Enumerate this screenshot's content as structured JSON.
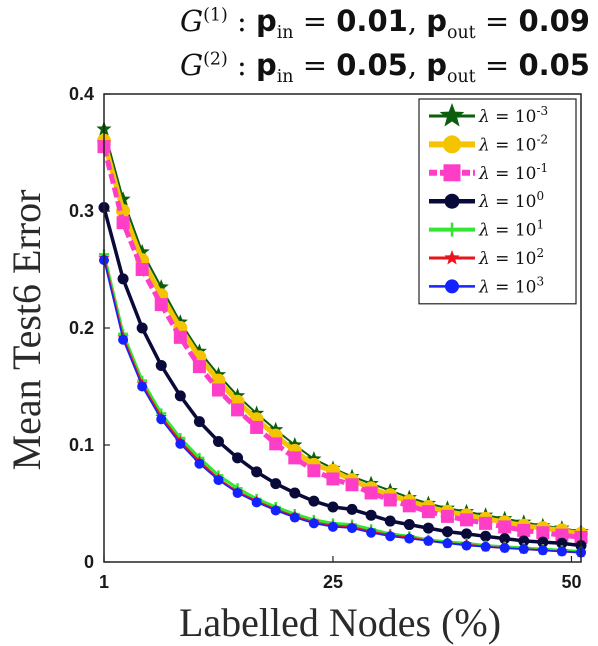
{
  "title": {
    "line1": {
      "graph": "G",
      "sup": "(1)",
      "pin_label": "p",
      "pin_sub": "in",
      "pin_value": "0.01",
      "pout_label": "p",
      "pout_sub": "out",
      "pout_value": "0.09"
    },
    "line2": {
      "graph": "G",
      "sup": "(2)",
      "pin_label": "p",
      "pin_sub": "in",
      "pin_value": "0.05",
      "pout_label": "p",
      "pout_sub": "out",
      "pout_value": "0.05"
    }
  },
  "chart_data": {
    "type": "line",
    "xlabel": "Labelled Nodes (%)",
    "ylabel": "Mean Test6 Error",
    "xlim": [
      1,
      51
    ],
    "ylim": [
      0,
      0.4
    ],
    "xticks": [
      1,
      25,
      50
    ],
    "yticks": [
      0,
      0.1,
      0.2,
      0.3,
      0.4
    ],
    "ytick_labels": [
      "0",
      "0.1",
      "0.2",
      "0.3",
      "0.4"
    ],
    "grid": false,
    "legend_position": "top-right",
    "series": [
      {
        "name": "λ = 10^-3",
        "base": "10",
        "exp": "-3",
        "color": "#0b5e0b",
        "marker": "star",
        "x": [
          1,
          3,
          5,
          7,
          9,
          11,
          13,
          15,
          17,
          19,
          21,
          23,
          25,
          27,
          29,
          31,
          33,
          35,
          37,
          39,
          41,
          43,
          45,
          47,
          49,
          51
        ],
        "y": [
          0.37,
          0.31,
          0.265,
          0.235,
          0.205,
          0.18,
          0.16,
          0.142,
          0.127,
          0.113,
          0.1,
          0.088,
          0.08,
          0.073,
          0.067,
          0.061,
          0.055,
          0.05,
          0.046,
          0.043,
          0.04,
          0.037,
          0.034,
          0.031,
          0.029,
          0.026
        ]
      },
      {
        "name": "λ = 10^-2",
        "base": "10",
        "exp": "-2",
        "color": "#f5c400",
        "marker": "circle",
        "x": [
          1,
          3,
          5,
          7,
          9,
          11,
          13,
          15,
          17,
          19,
          21,
          23,
          25,
          27,
          29,
          31,
          33,
          35,
          37,
          39,
          41,
          43,
          45,
          47,
          49,
          51
        ],
        "y": [
          0.36,
          0.3,
          0.258,
          0.228,
          0.2,
          0.175,
          0.155,
          0.137,
          0.122,
          0.108,
          0.095,
          0.083,
          0.078,
          0.07,
          0.063,
          0.057,
          0.052,
          0.047,
          0.043,
          0.04,
          0.037,
          0.034,
          0.031,
          0.029,
          0.027,
          0.024
        ]
      },
      {
        "name": "λ = 10^-1",
        "base": "10",
        "exp": "-1",
        "color": "#ff3ec8",
        "marker": "square",
        "x": [
          1,
          3,
          5,
          7,
          9,
          11,
          13,
          15,
          17,
          19,
          21,
          23,
          25,
          27,
          29,
          31,
          33,
          35,
          37,
          39,
          41,
          43,
          45,
          47,
          49,
          51
        ],
        "y": [
          0.355,
          0.29,
          0.25,
          0.22,
          0.192,
          0.167,
          0.147,
          0.13,
          0.115,
          0.101,
          0.089,
          0.078,
          0.071,
          0.066,
          0.059,
          0.053,
          0.048,
          0.043,
          0.039,
          0.036,
          0.033,
          0.03,
          0.027,
          0.025,
          0.023,
          0.021
        ]
      },
      {
        "name": "λ = 10^0",
        "base": "10",
        "exp": "0",
        "color": "#0a0a3a",
        "marker": "circle",
        "x": [
          1,
          3,
          5,
          7,
          9,
          11,
          13,
          15,
          17,
          19,
          21,
          23,
          25,
          27,
          29,
          31,
          33,
          35,
          37,
          39,
          41,
          43,
          45,
          47,
          49,
          51
        ],
        "y": [
          0.303,
          0.242,
          0.2,
          0.168,
          0.142,
          0.12,
          0.103,
          0.089,
          0.077,
          0.067,
          0.059,
          0.052,
          0.047,
          0.045,
          0.04,
          0.035,
          0.032,
          0.029,
          0.026,
          0.024,
          0.022,
          0.02,
          0.018,
          0.017,
          0.016,
          0.014
        ]
      },
      {
        "name": "λ = 10^1",
        "base": "10",
        "exp": "1",
        "color": "#33e633",
        "marker": "plus",
        "x": [
          1,
          3,
          5,
          7,
          9,
          11,
          13,
          15,
          17,
          19,
          21,
          23,
          25,
          27,
          29,
          31,
          33,
          35,
          37,
          39,
          41,
          43,
          45,
          47,
          49,
          51
        ],
        "y": [
          0.263,
          0.195,
          0.155,
          0.127,
          0.106,
          0.089,
          0.074,
          0.063,
          0.054,
          0.047,
          0.041,
          0.036,
          0.033,
          0.032,
          0.028,
          0.024,
          0.022,
          0.019,
          0.017,
          0.016,
          0.014,
          0.013,
          0.012,
          0.011,
          0.01,
          0.009
        ]
      },
      {
        "name": "λ = 10^2",
        "base": "10",
        "exp": "2",
        "color": "#e8141e",
        "marker": "star",
        "x": [
          1,
          3,
          5,
          7,
          9,
          11,
          13,
          15,
          17,
          19,
          21,
          23,
          25,
          27,
          29,
          31,
          33,
          35,
          37,
          39,
          41,
          43,
          45,
          47,
          49,
          51
        ],
        "y": [
          0.26,
          0.192,
          0.152,
          0.124,
          0.103,
          0.086,
          0.071,
          0.06,
          0.052,
          0.045,
          0.039,
          0.034,
          0.031,
          0.03,
          0.026,
          0.023,
          0.021,
          0.018,
          0.016,
          0.015,
          0.013,
          0.012,
          0.011,
          0.01,
          0.009,
          0.008
        ]
      },
      {
        "name": "λ = 10^3",
        "base": "10",
        "exp": "3",
        "color": "#1422ff",
        "marker": "circle",
        "x": [
          1,
          3,
          5,
          7,
          9,
          11,
          13,
          15,
          17,
          19,
          21,
          23,
          25,
          27,
          29,
          31,
          33,
          35,
          37,
          39,
          41,
          43,
          45,
          47,
          49,
          51
        ],
        "y": [
          0.258,
          0.19,
          0.15,
          0.122,
          0.101,
          0.084,
          0.07,
          0.059,
          0.051,
          0.044,
          0.038,
          0.033,
          0.03,
          0.029,
          0.025,
          0.022,
          0.02,
          0.018,
          0.016,
          0.014,
          0.013,
          0.012,
          0.011,
          0.01,
          0.009,
          0.008
        ]
      }
    ]
  }
}
